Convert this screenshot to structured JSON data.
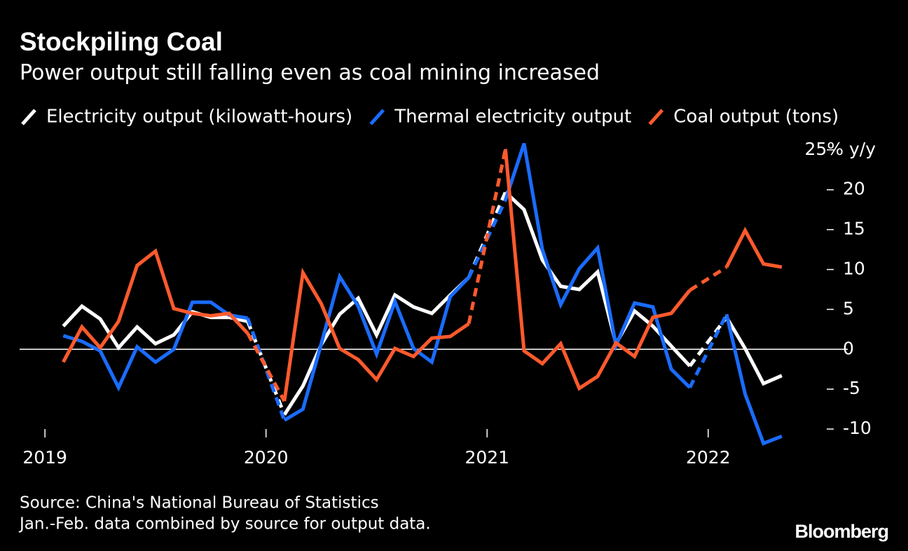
{
  "chart_data": {
    "type": "line",
    "title": "Stockpiling Coal",
    "subtitle": "Power output still falling even as coal mining increased",
    "source": "Source: China's National Bureau of Statistics",
    "note": "Jan.-Feb. data combined by source for output data.",
    "brand": "Bloomberg",
    "x": [
      2019.083,
      2019.167,
      2019.25,
      2019.333,
      2019.417,
      2019.5,
      2019.583,
      2019.667,
      2019.75,
      2019.833,
      2019.917,
      2020.083,
      2020.167,
      2020.25,
      2020.333,
      2020.417,
      2020.5,
      2020.583,
      2020.667,
      2020.75,
      2020.833,
      2020.917,
      2021.083,
      2021.167,
      2021.25,
      2021.333,
      2021.417,
      2021.5,
      2021.583,
      2021.667,
      2021.75,
      2021.833,
      2021.917,
      2022.083,
      2022.167,
      2022.25,
      2022.333
    ],
    "series": [
      {
        "name": "Electricity output (kilowatt-hours)",
        "color": "#ffffff",
        "values": [
          2.9,
          5.4,
          3.8,
          0.2,
          2.8,
          0.7,
          1.8,
          4.7,
          4.0,
          4.0,
          3.5,
          -8.2,
          -4.6,
          0.6,
          4.4,
          6.4,
          1.8,
          6.8,
          5.3,
          4.5,
          6.8,
          9.0,
          19.7,
          17.5,
          11.2,
          7.9,
          7.5,
          9.7,
          0.7,
          4.8,
          2.9,
          0.4,
          -2.1,
          4.0,
          0.1,
          -4.3,
          -3.3
        ]
      },
      {
        "name": "Thermal electricity output",
        "color": "#1a6cff",
        "values": [
          1.7,
          1.0,
          -0.2,
          -4.8,
          0.3,
          -1.6,
          0.0,
          5.9,
          5.9,
          4.3,
          3.9,
          -8.9,
          -7.5,
          0.7,
          9.1,
          5.4,
          -0.6,
          6.0,
          0.1,
          -1.6,
          6.6,
          9.0,
          18.7,
          25.8,
          12.5,
          5.6,
          10.1,
          12.7,
          0.5,
          5.8,
          5.3,
          -2.5,
          -4.8,
          4.4,
          -5.6,
          -11.8,
          -10.9
        ]
      },
      {
        "name": "Coal output (tons)",
        "color": "#ff5a2d",
        "values": [
          -1.6,
          2.8,
          0.2,
          3.5,
          10.5,
          12.3,
          5.1,
          4.5,
          4.2,
          4.5,
          2.0,
          -6.5,
          9.6,
          5.7,
          0.1,
          -1.3,
          -3.8,
          0.1,
          -0.9,
          1.4,
          1.6,
          3.2,
          25.1,
          -0.2,
          -1.8,
          0.7,
          -4.9,
          -3.4,
          0.8,
          -0.9,
          4.0,
          4.5,
          7.4,
          10.3,
          14.9,
          10.7,
          10.3
        ]
      }
    ],
    "gap_style": "dashed",
    "zero_line": true,
    "xlim": [
      2018.9,
      2022.45
    ],
    "xticks": [
      2019,
      2020,
      2021,
      2022
    ],
    "ylim": [
      -12,
      26
    ],
    "yticks": [
      -10,
      -5,
      0,
      5,
      10,
      15,
      20,
      {
        "value": 25,
        "label": "25% y/y"
      }
    ]
  }
}
